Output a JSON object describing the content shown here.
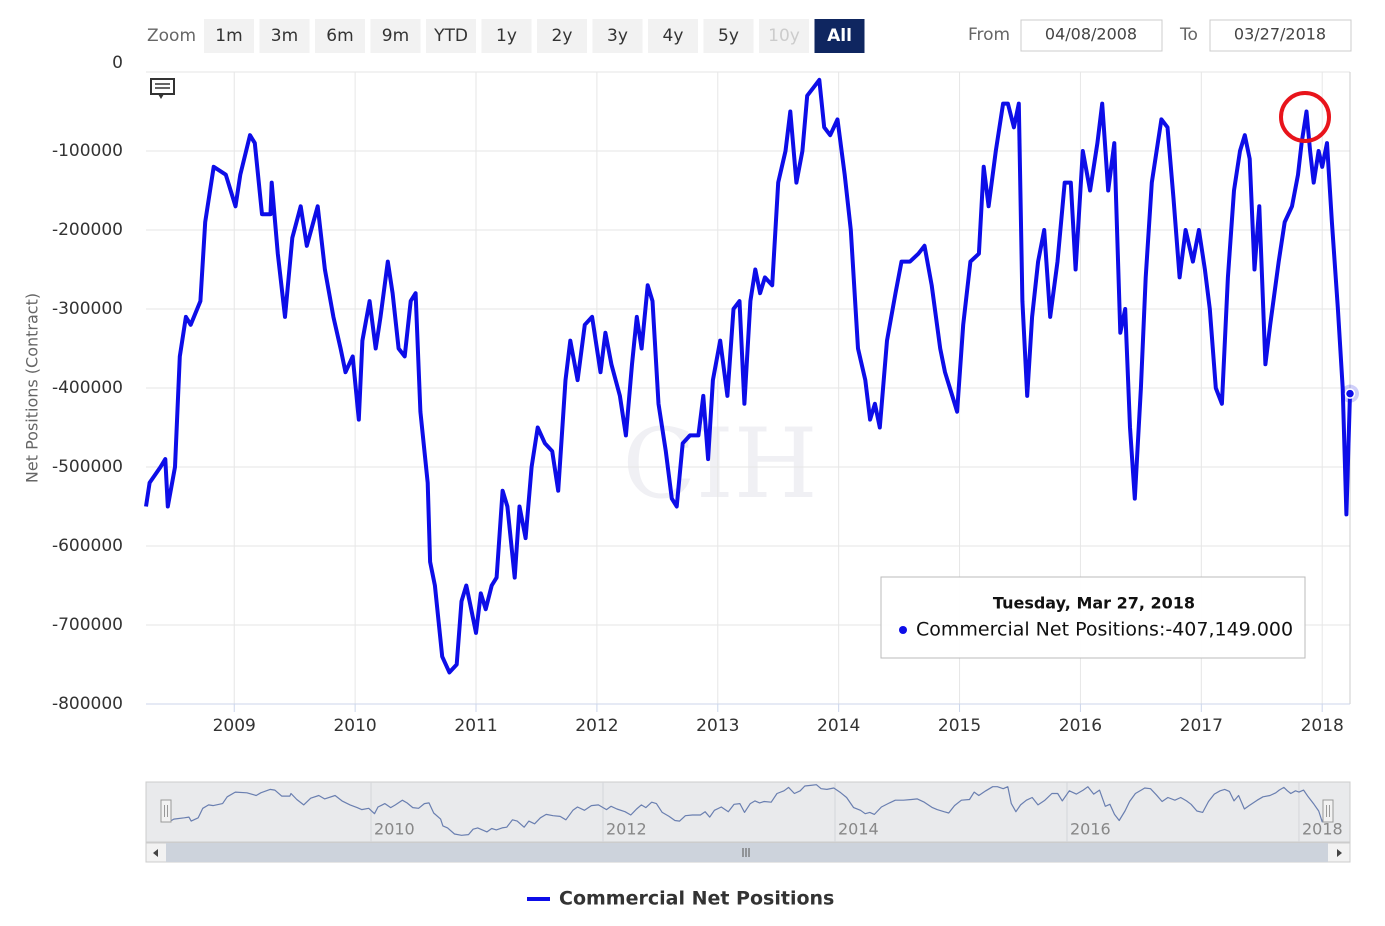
{
  "chart_data": {
    "type": "line",
    "y_label": "Net Positions (Contract)",
    "watermark": "CIH",
    "zoom": {
      "label": "Zoom",
      "buttons": [
        "1m",
        "3m",
        "6m",
        "9m",
        "YTD",
        "1y",
        "2y",
        "3y",
        "4y",
        "5y",
        "10y",
        "All"
      ],
      "selected": "All",
      "disabled": [
        "10y"
      ]
    },
    "range": {
      "from_label": "From",
      "from": "04/08/2008",
      "to_label": "To",
      "to": "03/27/2018"
    },
    "tooltip": {
      "date": "Tuesday, Mar 27, 2018",
      "text": "Commercial Net Positions:-407,149.000"
    },
    "xlim": [
      2008.27,
      2018.23
    ],
    "xticks": [
      2009,
      2010,
      2011,
      2012,
      2013,
      2014,
      2015,
      2016,
      2017,
      2018
    ],
    "ylim": [
      -800000,
      0
    ],
    "yticks": [
      0,
      -100000,
      -200000,
      -300000,
      -400000,
      -500000,
      -600000,
      -700000,
      -800000
    ],
    "grid": true,
    "navigator": {
      "xlim": [
        2008.06,
        2018.44
      ],
      "xticks": [
        2010,
        2012,
        2014,
        2016,
        2018
      ],
      "color": "#6a7fb0"
    },
    "x": [
      2008.27,
      2008.3,
      2008.39,
      2008.43,
      2008.45,
      2008.51,
      2008.55,
      2008.6,
      2008.64,
      2008.72,
      2008.76,
      2008.83,
      2008.93,
      2009.01,
      2009.05,
      2009.13,
      2009.17,
      2009.23,
      2009.3,
      2009.31,
      2009.36,
      2009.42,
      2009.48,
      2009.55,
      2009.6,
      2009.69,
      2009.75,
      2009.82,
      2009.88,
      2009.92,
      2009.98,
      2010.03,
      2010.06,
      2010.12,
      2010.17,
      2010.21,
      2010.27,
      2010.31,
      2010.36,
      2010.41,
      2010.46,
      2010.5,
      2010.54,
      2010.6,
      2010.62,
      2010.66,
      2010.72,
      2010.78,
      2010.84,
      2010.88,
      2010.92,
      2010.96,
      2011.0,
      2011.04,
      2011.08,
      2011.13,
      2011.17,
      2011.22,
      2011.26,
      2011.32,
      2011.36,
      2011.41,
      2011.46,
      2011.51,
      2011.57,
      2011.63,
      2011.68,
      2011.74,
      2011.78,
      2011.84,
      2011.9,
      2011.96,
      2012.03,
      2012.07,
      2012.12,
      2012.19,
      2012.24,
      2012.29,
      2012.33,
      2012.37,
      2012.42,
      2012.46,
      2012.51,
      2012.57,
      2012.62,
      2012.66,
      2012.71,
      2012.77,
      2012.84,
      2012.88,
      2012.92,
      2012.96,
      2013.02,
      2013.08,
      2013.13,
      2013.18,
      2013.22,
      2013.27,
      2013.31,
      2013.35,
      2013.39,
      2013.45,
      2013.5,
      2013.56,
      2013.6,
      2013.65,
      2013.7,
      2013.74,
      2013.79,
      2013.84,
      2013.88,
      2013.93,
      2013.99,
      2014.05,
      2014.1,
      2014.16,
      2014.22,
      2014.26,
      2014.3,
      2014.34,
      2014.4,
      2014.47,
      2014.52,
      2014.59,
      2014.66,
      2014.71,
      2014.77,
      2014.84,
      2014.88,
      2014.94,
      2014.98,
      2015.03,
      2015.09,
      2015.16,
      2015.2,
      2015.24,
      2015.3,
      2015.36,
      2015.4,
      2015.45,
      2015.49,
      2015.52,
      2015.56,
      2015.6,
      2015.65,
      2015.7,
      2015.75,
      2015.81,
      2015.87,
      2015.92,
      2015.96,
      2016.02,
      2016.08,
      2016.14,
      2016.18,
      2016.23,
      2016.28,
      2016.33,
      2016.37,
      2016.41,
      2016.45,
      2016.5,
      2016.54,
      2016.59,
      2016.64,
      2016.67,
      2016.72,
      2016.77,
      2016.82,
      2016.87,
      2016.93,
      2016.98,
      2017.03,
      2017.07,
      2017.12,
      2017.17,
      2017.22,
      2017.27,
      2017.32,
      2017.36,
      2017.4,
      2017.44,
      2017.48,
      2017.53,
      2017.57,
      2017.64,
      2017.69,
      2017.75,
      2017.8,
      2017.83,
      2017.87,
      2017.9,
      2017.93,
      2017.97,
      2018.0,
      2018.04,
      2018.08,
      2018.13,
      2018.17,
      2018.2,
      2018.23
    ],
    "series": [
      {
        "name": "Commercial Net Positions",
        "color": "#0d0de8",
        "values": [
          -550000,
          -520000,
          -500000,
          -490000,
          -550000,
          -500000,
          -360000,
          -310000,
          -320000,
          -290000,
          -190000,
          -120000,
          -130000,
          -170000,
          -130000,
          -80000,
          -90000,
          -180000,
          -180000,
          -140000,
          -230000,
          -310000,
          -210000,
          -170000,
          -220000,
          -170000,
          -250000,
          -310000,
          -350000,
          -380000,
          -360000,
          -440000,
          -340000,
          -290000,
          -350000,
          -310000,
          -240000,
          -280000,
          -350000,
          -360000,
          -290000,
          -280000,
          -430000,
          -520000,
          -620000,
          -650000,
          -740000,
          -760000,
          -750000,
          -670000,
          -650000,
          -680000,
          -710000,
          -660000,
          -680000,
          -650000,
          -640000,
          -530000,
          -550000,
          -640000,
          -550000,
          -590000,
          -500000,
          -450000,
          -470000,
          -480000,
          -530000,
          -390000,
          -340000,
          -390000,
          -320000,
          -310000,
          -380000,
          -330000,
          -370000,
          -410000,
          -460000,
          -370000,
          -310000,
          -350000,
          -270000,
          -290000,
          -420000,
          -480000,
          -540000,
          -550000,
          -470000,
          -460000,
          -460000,
          -410000,
          -490000,
          -390000,
          -340000,
          -410000,
          -300000,
          -290000,
          -420000,
          -290000,
          -250000,
          -280000,
          -260000,
          -270000,
          -140000,
          -100000,
          -50000,
          -140000,
          -100000,
          -30000,
          -20000,
          -10000,
          -70000,
          -80000,
          -60000,
          -130000,
          -200000,
          -350000,
          -390000,
          -440000,
          -420000,
          -450000,
          -340000,
          -280000,
          -240000,
          -240000,
          -230000,
          -220000,
          -270000,
          -350000,
          -380000,
          -410000,
          -430000,
          -320000,
          -240000,
          -230000,
          -120000,
          -170000,
          -100000,
          -40000,
          -40000,
          -70000,
          -40000,
          -290000,
          -410000,
          -310000,
          -240000,
          -200000,
          -310000,
          -240000,
          -140000,
          -140000,
          -250000,
          -100000,
          -150000,
          -90000,
          -40000,
          -150000,
          -90000,
          -330000,
          -300000,
          -450000,
          -540000,
          -400000,
          -260000,
          -140000,
          -90000,
          -60000,
          -70000,
          -160000,
          -260000,
          -200000,
          -240000,
          -200000,
          -250000,
          -300000,
          -400000,
          -420000,
          -260000,
          -150000,
          -100000,
          -80000,
          -110000,
          -250000,
          -170000,
          -370000,
          -320000,
          -240000,
          -190000,
          -170000,
          -130000,
          -90000,
          -50000,
          -100000,
          -140000,
          -100000,
          -120000,
          -90000,
          -190000,
          -300000,
          -400000,
          -560000,
          -407149
        ]
      }
    ]
  }
}
